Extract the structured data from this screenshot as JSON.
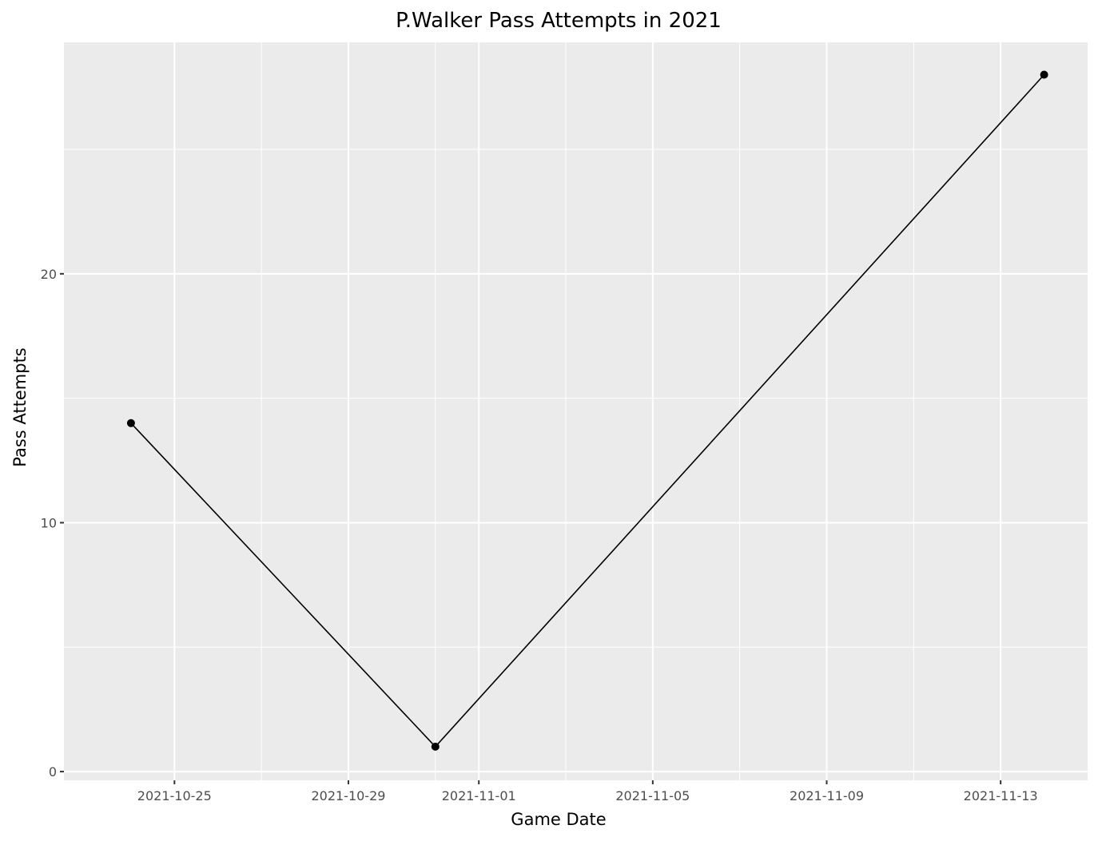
{
  "chart_data": {
    "type": "line",
    "title": "P.Walker Pass Attempts in 2021",
    "xlabel": "Game Date",
    "ylabel": "Pass Attempts",
    "x_is_date": true,
    "xlim": [
      "2021-10-22T11:00",
      "2021-11-15T00:00"
    ],
    "ylim": [
      -0.35,
      29.3
    ],
    "x_ticks": [
      "2021-10-25",
      "2021-10-29",
      "2021-11-01",
      "2021-11-05",
      "2021-11-09",
      "2021-11-13"
    ],
    "x_minor_ticks": [
      "2021-10-27",
      "2021-10-31",
      "2021-11-03",
      "2021-11-07",
      "2021-11-11"
    ],
    "y_ticks": [
      0,
      10,
      20
    ],
    "y_minor_ticks": [
      5,
      15,
      25
    ],
    "points": [
      {
        "x": "2021-10-24",
        "y": 14
      },
      {
        "x": "2021-10-31",
        "y": 1
      },
      {
        "x": "2021-11-14",
        "y": 28
      }
    ],
    "grid": true,
    "panel_background": "#ebebeb",
    "grid_color": "#ffffff",
    "line_color": "#000000",
    "point_color": "#000000"
  }
}
